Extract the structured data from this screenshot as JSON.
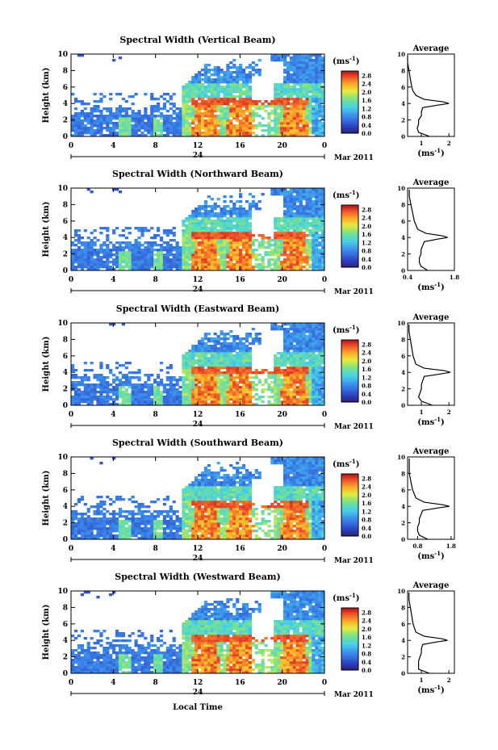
{
  "figure": {
    "date_label": "Mar 2011",
    "day_label": "24",
    "xlabel": "Local Time",
    "ylabel": "Height (km)",
    "unit_label_main": "(ms",
    "unit_label_exp": "-1",
    "unit_label_close": ")",
    "avg_title": "Average"
  },
  "chart_data": [
    {
      "type": "heatmap",
      "title": "Spectral Width (Vertical Beam)",
      "xlabel": "",
      "ylabel": "Height (km)",
      "x_ticks": [
        "0",
        "4",
        "8",
        "12",
        "16",
        "20",
        "0"
      ],
      "y_ticks": [
        "0",
        "2",
        "4",
        "6",
        "8",
        "10"
      ],
      "xlim": [
        0,
        24
      ],
      "ylim": [
        0,
        10
      ],
      "colorbar_ticks": [
        "0.0",
        "0.4",
        "0.8",
        "1.2",
        "1.6",
        "2.0",
        "2.4",
        "2.8"
      ],
      "profile": {
        "title": "Average",
        "x_ticks": [
          "1",
          "2"
        ],
        "xlim": [
          0.5,
          2.2
        ],
        "heights": [
          0,
          0.5,
          1,
          1.5,
          2,
          2.5,
          3,
          3.5,
          3.8,
          4.0,
          4.2,
          4.5,
          5,
          5.5,
          6,
          7,
          8,
          9,
          9.8
        ],
        "values": [
          1.3,
          0.9,
          0.85,
          0.9,
          0.9,
          1.0,
          1.0,
          1.05,
          1.6,
          2.0,
          1.8,
          1.1,
          0.8,
          0.7,
          0.65,
          0.6,
          0.55,
          0.5,
          0.5
        ]
      }
    },
    {
      "type": "heatmap",
      "title": "Spectral Width (Northward Beam)",
      "xlabel": "",
      "ylabel": "Height (km)",
      "x_ticks": [
        "0",
        "4",
        "8",
        "12",
        "16",
        "20",
        "0"
      ],
      "y_ticks": [
        "0",
        "2",
        "4",
        "6",
        "8",
        "10"
      ],
      "xlim": [
        0,
        24
      ],
      "ylim": [
        0,
        10
      ],
      "colorbar_ticks": [
        "0.0",
        "0.4",
        "0.8",
        "1.2",
        "1.6",
        "2.0",
        "2.4",
        "2.8"
      ],
      "profile": {
        "title": "Average",
        "x_ticks": [
          "0.4",
          "1.8"
        ],
        "xlim": [
          0.4,
          1.8
        ],
        "heights": [
          0,
          0.5,
          1,
          1.5,
          2,
          2.5,
          3,
          3.5,
          3.8,
          4.0,
          4.2,
          4.5,
          5,
          5.5,
          6,
          7,
          8,
          9,
          9.8
        ],
        "values": [
          1.0,
          0.8,
          0.75,
          0.75,
          0.8,
          0.8,
          0.85,
          0.9,
          1.3,
          1.6,
          1.45,
          0.95,
          0.7,
          0.65,
          0.6,
          0.55,
          0.5,
          0.45,
          0.45
        ]
      }
    },
    {
      "type": "heatmap",
      "title": "Spectral Width (Eastward Beam)",
      "xlabel": "",
      "ylabel": "Height (km)",
      "x_ticks": [
        "0",
        "4",
        "8",
        "12",
        "16",
        "20",
        "0"
      ],
      "y_ticks": [
        "0",
        "2",
        "4",
        "6",
        "8",
        "10"
      ],
      "xlim": [
        0,
        24
      ],
      "ylim": [
        0,
        10
      ],
      "colorbar_ticks": [
        "0.0",
        "0.4",
        "0.8",
        "1.2",
        "1.6",
        "2.0",
        "2.4",
        "2.8"
      ],
      "profile": {
        "title": "Average",
        "x_ticks": [
          "1",
          "2"
        ],
        "xlim": [
          0.5,
          2.2
        ],
        "heights": [
          0,
          0.5,
          1,
          1.5,
          2,
          2.5,
          3,
          3.5,
          3.8,
          4.0,
          4.2,
          4.5,
          5,
          5.5,
          6,
          7,
          8,
          9,
          9.8
        ],
        "values": [
          1.4,
          1.0,
          0.9,
          0.95,
          1.0,
          1.0,
          1.05,
          1.1,
          1.7,
          2.05,
          1.85,
          1.1,
          0.8,
          0.75,
          0.7,
          0.65,
          0.6,
          0.55,
          0.55
        ]
      }
    },
    {
      "type": "heatmap",
      "title": "Spectral Width (Southward Beam)",
      "xlabel": "",
      "ylabel": "Height (km)",
      "x_ticks": [
        "0",
        "4",
        "8",
        "12",
        "16",
        "20",
        "0"
      ],
      "y_ticks": [
        "0",
        "2",
        "4",
        "6",
        "8",
        "10"
      ],
      "xlim": [
        0,
        24
      ],
      "ylim": [
        0,
        10
      ],
      "colorbar_ticks": [
        "0.0",
        "0.4",
        "0.8",
        "1.2",
        "1.6",
        "2.0",
        "2.4",
        "2.8"
      ],
      "profile": {
        "title": "Average",
        "x_ticks": [
          "0.8",
          "1.8"
        ],
        "xlim": [
          0.5,
          1.9
        ],
        "heights": [
          0,
          0.5,
          1,
          1.5,
          2,
          2.5,
          3,
          3.5,
          3.8,
          4.0,
          4.2,
          4.5,
          5,
          5.5,
          6,
          7,
          8,
          9,
          9.8
        ],
        "values": [
          1.1,
          0.85,
          0.8,
          0.8,
          0.85,
          0.85,
          0.9,
          0.95,
          1.4,
          1.75,
          1.55,
          1.0,
          0.75,
          0.7,
          0.65,
          0.6,
          0.55,
          0.55,
          0.55
        ]
      }
    },
    {
      "type": "heatmap",
      "title": "Spectral Width (Westward Beam)",
      "xlabel": "Local Time",
      "ylabel": "Height (km)",
      "x_ticks": [
        "0",
        "4",
        "8",
        "12",
        "16",
        "20",
        "0"
      ],
      "y_ticks": [
        "0",
        "2",
        "4",
        "6",
        "8",
        "10"
      ],
      "xlim": [
        0,
        24
      ],
      "ylim": [
        0,
        10
      ],
      "colorbar_ticks": [
        "0.0",
        "0.4",
        "0.8",
        "1.2",
        "1.6",
        "2.0",
        "2.4",
        "2.8"
      ],
      "profile": {
        "title": "Average",
        "x_ticks": [
          "1",
          "2"
        ],
        "xlim": [
          0.5,
          2.2
        ],
        "heights": [
          0,
          0.5,
          1,
          1.5,
          2,
          2.5,
          3,
          3.5,
          3.8,
          4.0,
          4.2,
          4.5,
          5,
          5.5,
          6,
          7,
          8,
          9,
          9.8
        ],
        "values": [
          1.3,
          0.9,
          0.9,
          0.9,
          0.95,
          1.0,
          1.0,
          1.05,
          1.55,
          1.95,
          1.75,
          1.1,
          0.8,
          0.75,
          0.7,
          0.65,
          0.6,
          0.55,
          0.55
        ]
      }
    }
  ]
}
